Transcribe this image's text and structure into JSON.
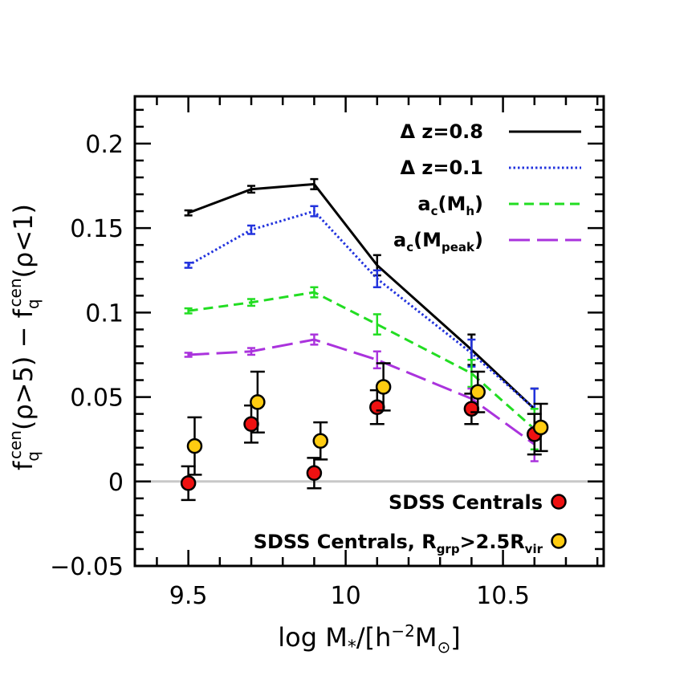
{
  "chart_data": {
    "type": "line",
    "xlabel": "log M∗/[h⁻²M⊙]",
    "ylabel": "f_q^cen(ρ>5) − f_q^cen(ρ<1)",
    "xlim": [
      9.33,
      10.82
    ],
    "ylim": [
      -0.05,
      0.228
    ],
    "x_ticks": [
      9.5,
      10,
      10.5
    ],
    "x_tick_labels": [
      "9.5",
      "10",
      "10.5"
    ],
    "y_ticks": [
      -0.05,
      0,
      0.05,
      0.1,
      0.15,
      0.2
    ],
    "y_tick_labels": [
      "−0.05",
      "0",
      "0.05",
      "0.1",
      "0.15",
      "0.2"
    ],
    "zero_line": 0,
    "legend_position": "top-right",
    "series": [
      {
        "name": "Δ z=0.8",
        "color": "#000000",
        "style": "solid",
        "x": [
          9.5,
          9.7,
          9.9,
          10.1,
          10.4,
          10.6
        ],
        "y": [
          0.159,
          0.173,
          0.176,
          0.128,
          0.078,
          0.043
        ],
        "err": [
          0.0015,
          0.002,
          0.003,
          0.006,
          0.009,
          0.012
        ]
      },
      {
        "name": "Δ z=0.1",
        "color": "#2233dd",
        "style": "dotted",
        "x": [
          9.5,
          9.7,
          9.9,
          10.1,
          10.4,
          10.6
        ],
        "y": [
          0.128,
          0.149,
          0.16,
          0.12,
          0.076,
          0.043
        ],
        "err": [
          0.0015,
          0.0025,
          0.003,
          0.005,
          0.008,
          0.012
        ]
      },
      {
        "name": "a_c(M_h)",
        "color": "#22dd22",
        "style": "dashed",
        "x": [
          9.5,
          9.7,
          9.9,
          10.1,
          10.4,
          10.6
        ],
        "y": [
          0.101,
          0.106,
          0.112,
          0.093,
          0.064,
          0.031
        ],
        "err": [
          0.0015,
          0.002,
          0.003,
          0.006,
          0.008,
          0.012
        ]
      },
      {
        "name": "a_c(M_peak)",
        "color": "#aa33dd",
        "style": "longdash",
        "x": [
          9.5,
          9.7,
          9.9,
          10.1,
          10.4,
          10.6
        ],
        "y": [
          0.075,
          0.077,
          0.084,
          0.072,
          0.049,
          0.022
        ],
        "err": [
          0.0012,
          0.002,
          0.003,
          0.005,
          0.006,
          0.01
        ]
      }
    ],
    "points": [
      {
        "name": "SDSS Centrals",
        "color": "#ee1111",
        "x": [
          9.5,
          9.7,
          9.9,
          10.1,
          10.4,
          10.6
        ],
        "y": [
          -0.001,
          0.034,
          0.005,
          0.044,
          0.043,
          0.028
        ],
        "err": [
          0.01,
          0.011,
          0.009,
          0.01,
          0.009,
          0.012
        ]
      },
      {
        "name": "SDSS Centrals, R_grp>2.5R_vir",
        "color": "#ffcc11",
        "x": [
          9.52,
          9.72,
          9.92,
          10.12,
          10.42,
          10.62
        ],
        "y": [
          0.021,
          0.047,
          0.024,
          0.056,
          0.053,
          0.032
        ],
        "err": [
          0.017,
          0.018,
          0.011,
          0.014,
          0.012,
          0.014
        ]
      }
    ]
  }
}
